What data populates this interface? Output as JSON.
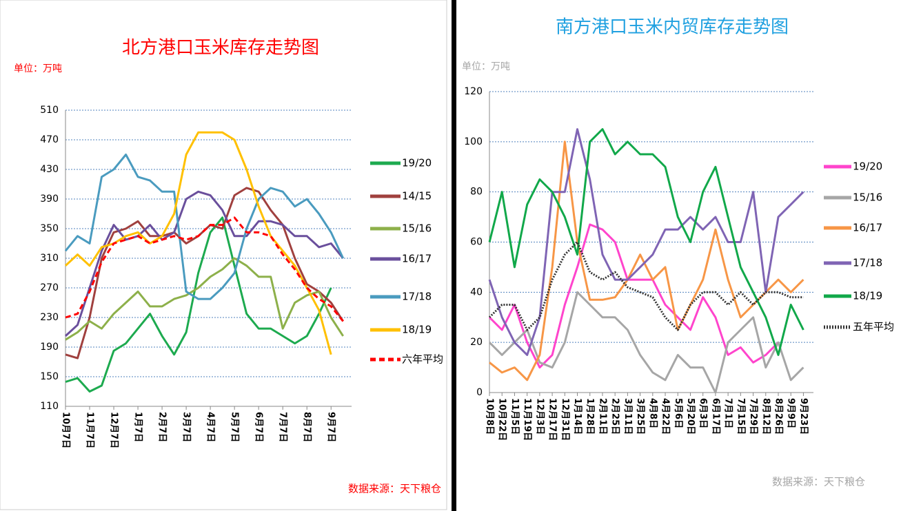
{
  "chart_data": [
    {
      "type": "line",
      "title": "北方港口玉米库存走势图",
      "unit_label": "单位：万吨",
      "source": "数据来源：天下粮仓",
      "title_color": "#ff0000",
      "note_color": "#ff0000",
      "categories": [
        "10月7日",
        null,
        "11月7日",
        null,
        "12月7日",
        null,
        "1月7日",
        null,
        "2月7日",
        null,
        "3月7日",
        null,
        "4月7日",
        null,
        "5月7日",
        null,
        "6月7日",
        null,
        "7月7日",
        null,
        "8月7日",
        null,
        "9月7日",
        null
      ],
      "ylim": [
        110,
        510
      ],
      "yticks": [
        110,
        150,
        190,
        230,
        270,
        310,
        350,
        390,
        430,
        470,
        510
      ],
      "grid": true,
      "legend": "right",
      "series": [
        {
          "name": "19/20",
          "color": "#1daa4f",
          "style": "solid",
          "values": [
            143,
            148,
            130,
            138,
            185,
            195,
            215,
            235,
            205,
            180,
            210,
            290,
            345,
            365,
            300,
            235,
            215,
            215,
            205,
            195,
            205,
            235,
            270,
            null
          ]
        },
        {
          "name": "14/15",
          "color": "#a0403e",
          "style": "solid",
          "values": [
            180,
            175,
            230,
            310,
            345,
            350,
            360,
            340,
            340,
            345,
            330,
            340,
            355,
            350,
            395,
            405,
            400,
            375,
            355,
            310,
            275,
            265,
            250,
            225
          ]
        },
        {
          "name": "15/16",
          "color": "#8db04a",
          "style": "solid",
          "values": [
            200,
            210,
            225,
            215,
            235,
            250,
            265,
            245,
            245,
            255,
            260,
            270,
            285,
            295,
            310,
            300,
            285,
            285,
            215,
            250,
            260,
            265,
            230,
            205
          ]
        },
        {
          "name": "16/17",
          "color": "#6a4f9c",
          "style": "solid",
          "values": [
            205,
            220,
            270,
            320,
            355,
            335,
            340,
            355,
            335,
            345,
            390,
            400,
            395,
            375,
            340,
            340,
            360,
            360,
            355,
            340,
            340,
            325,
            330,
            310
          ]
        },
        {
          "name": "17/18",
          "color": "#4a9bbf",
          "style": "solid",
          "values": [
            320,
            340,
            330,
            420,
            430,
            450,
            420,
            415,
            400,
            400,
            265,
            255,
            255,
            270,
            290,
            350,
            390,
            405,
            400,
            380,
            390,
            370,
            345,
            310
          ]
        },
        {
          "name": "18/19",
          "color": "#ffc000",
          "style": "solid",
          "values": [
            300,
            315,
            300,
            325,
            330,
            340,
            345,
            330,
            340,
            370,
            450,
            480,
            480,
            480,
            470,
            430,
            380,
            340,
            320,
            300,
            270,
            240,
            180,
            null
          ]
        },
        {
          "name": "六年平均",
          "color": "#ff0000",
          "style": "dashed",
          "values": [
            230,
            235,
            265,
            305,
            330,
            335,
            340,
            330,
            335,
            340,
            335,
            340,
            355,
            355,
            365,
            345,
            345,
            340,
            315,
            295,
            270,
            255,
            245,
            225
          ]
        }
      ]
    },
    {
      "type": "line",
      "title": "南方港口玉米内贸库存走势图",
      "unit_label": "单位：万吨",
      "source": "数据来源：天下粮仓",
      "title_color": "#1fa0e0",
      "note_color": "#a6a6a6",
      "categories": [
        "10月8日",
        "10月22日",
        "11月5日",
        "11月19日",
        "12月3日",
        "12月17日",
        "12月31日",
        "1月14日",
        "1月28日",
        "2月11日",
        "2月25日",
        "3月11日",
        "3月25日",
        "4月8日",
        "4月22日",
        "5月6日",
        "5月20日",
        "6月3日",
        "6月17日",
        "7月1日",
        "7月15日",
        "7月29日",
        "8月12日",
        "8月26日",
        "9月9日",
        "9月23日"
      ],
      "ylim": [
        0,
        120
      ],
      "yticks": [
        0,
        20,
        40,
        60,
        80,
        100,
        120
      ],
      "grid": true,
      "legend": "right",
      "series": [
        {
          "name": "19/20",
          "color": "#ff44cc",
          "style": "solid",
          "values": [
            30,
            25,
            35,
            20,
            10,
            15,
            35,
            50,
            67,
            65,
            60,
            45,
            45,
            45,
            35,
            30,
            25,
            38,
            30,
            15,
            18,
            12,
            15,
            20,
            null,
            null
          ]
        },
        {
          "name": "15/16",
          "color": "#a6a6a6",
          "style": "solid",
          "values": [
            20,
            15,
            20,
            25,
            12,
            10,
            20,
            40,
            35,
            30,
            30,
            25,
            15,
            8,
            5,
            15,
            10,
            10,
            0,
            20,
            25,
            30,
            10,
            20,
            5,
            10
          ]
        },
        {
          "name": "16/17",
          "color": "#f79646",
          "style": "solid",
          "values": [
            12,
            8,
            10,
            5,
            15,
            50,
            100,
            60,
            37,
            37,
            38,
            45,
            55,
            45,
            50,
            25,
            35,
            45,
            65,
            45,
            30,
            35,
            40,
            45,
            40,
            45
          ]
        },
        {
          "name": "17/18",
          "color": "#7f64b4",
          "style": "solid",
          "values": [
            45,
            30,
            20,
            15,
            30,
            80,
            80,
            105,
            85,
            55,
            45,
            45,
            50,
            55,
            65,
            65,
            70,
            65,
            70,
            60,
            60,
            80,
            40,
            70,
            75,
            80
          ]
        },
        {
          "name": "18/19",
          "color": "#11a84a",
          "style": "solid",
          "values": [
            60,
            80,
            50,
            75,
            85,
            80,
            70,
            55,
            100,
            105,
            95,
            100,
            95,
            95,
            90,
            70,
            60,
            80,
            90,
            70,
            50,
            40,
            30,
            15,
            35,
            25
          ]
        },
        {
          "name": "五年平均",
          "color": "#333333",
          "style": "dotted",
          "values": [
            30,
            35,
            35,
            25,
            30,
            45,
            55,
            60,
            48,
            45,
            48,
            42,
            40,
            38,
            30,
            25,
            35,
            40,
            40,
            35,
            40,
            35,
            40,
            40,
            38,
            38
          ]
        }
      ]
    }
  ]
}
